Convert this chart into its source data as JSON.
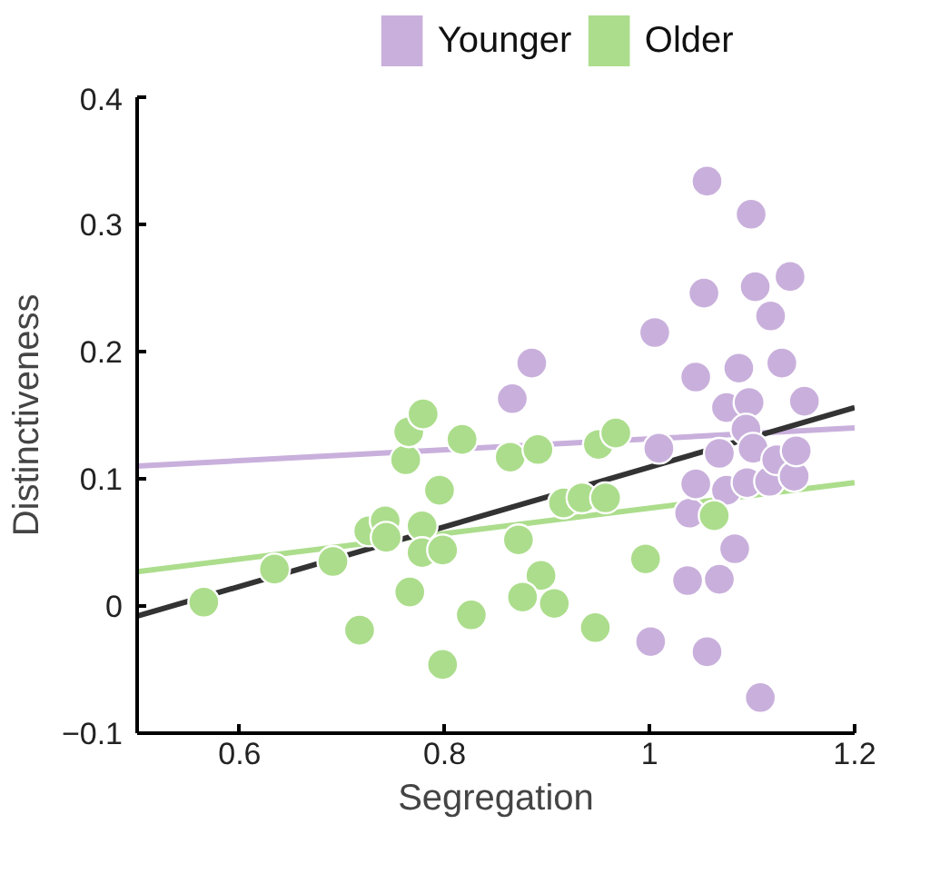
{
  "chart_data": {
    "type": "scatter",
    "xlabel": "Segregation",
    "ylabel": "Distinctiveness",
    "xlim": [
      0.5,
      1.2
    ],
    "ylim": [
      -0.1,
      0.4
    ],
    "xticks": [
      0.6,
      0.8,
      1,
      1.2
    ],
    "yticks": [
      -0.1,
      0,
      0.1,
      0.2,
      0.3,
      0.4
    ],
    "grid": false,
    "legend": "top",
    "series": [
      {
        "name": "Younger",
        "color": "#c9b0dc",
        "marker": "circle",
        "x": [
          0.866,
          0.885,
          1.005,
          1.009,
          1.001,
          1.045,
          1.053,
          1.056,
          1.039,
          1.045,
          1.037,
          1.056,
          1.068,
          1.068,
          1.075,
          1.075,
          1.083,
          1.087,
          1.097,
          1.094,
          1.101,
          1.095,
          1.103,
          1.099,
          1.108,
          1.117,
          1.118,
          1.124,
          1.129,
          1.137,
          1.141,
          1.143,
          1.151
        ],
        "values": [
          0.163,
          0.191,
          0.215,
          0.124,
          -0.028,
          0.18,
          0.246,
          0.334,
          0.073,
          0.096,
          0.02,
          -0.036,
          0.12,
          0.021,
          0.091,
          0.156,
          0.045,
          0.187,
          0.16,
          0.139,
          0.124,
          0.097,
          0.251,
          0.308,
          -0.072,
          0.098,
          0.228,
          0.115,
          0.191,
          0.259,
          0.102,
          0.122,
          0.161
        ]
      },
      {
        "name": "Older",
        "color": "#acdd8c",
        "marker": "circle",
        "x": [
          0.565,
          0.634,
          0.691,
          0.717,
          0.726,
          0.742,
          0.743,
          0.766,
          0.762,
          0.765,
          0.779,
          0.778,
          0.778,
          0.798,
          0.795,
          0.798,
          0.817,
          0.826,
          0.864,
          0.891,
          0.872,
          0.894,
          0.876,
          0.907,
          0.916,
          0.934,
          0.957,
          0.95,
          0.967,
          0.947,
          0.996,
          1.063
        ],
        "values": [
          0.003,
          0.029,
          0.035,
          -0.019,
          0.059,
          0.067,
          0.054,
          0.011,
          0.115,
          0.137,
          0.151,
          0.063,
          0.042,
          0.044,
          0.091,
          -0.046,
          0.131,
          -0.007,
          0.117,
          0.123,
          0.052,
          0.024,
          0.007,
          0.002,
          0.081,
          0.085,
          0.085,
          0.127,
          0.136,
          -0.017,
          0.037,
          0.071
        ]
      },
      {
        "type": "line",
        "color": "#c9b0dc",
        "x": [
          0.5,
          1.2
        ],
        "values": [
          0.11,
          0.14
        ]
      },
      {
        "type": "line",
        "color": "#acdd8c",
        "x": [
          0.5,
          1.2
        ],
        "values": [
          0.027,
          0.097
        ]
      },
      {
        "type": "line",
        "color": "#333333",
        "x": [
          0.5,
          1.2
        ],
        "values": [
          -0.008,
          0.156
        ]
      }
    ]
  }
}
